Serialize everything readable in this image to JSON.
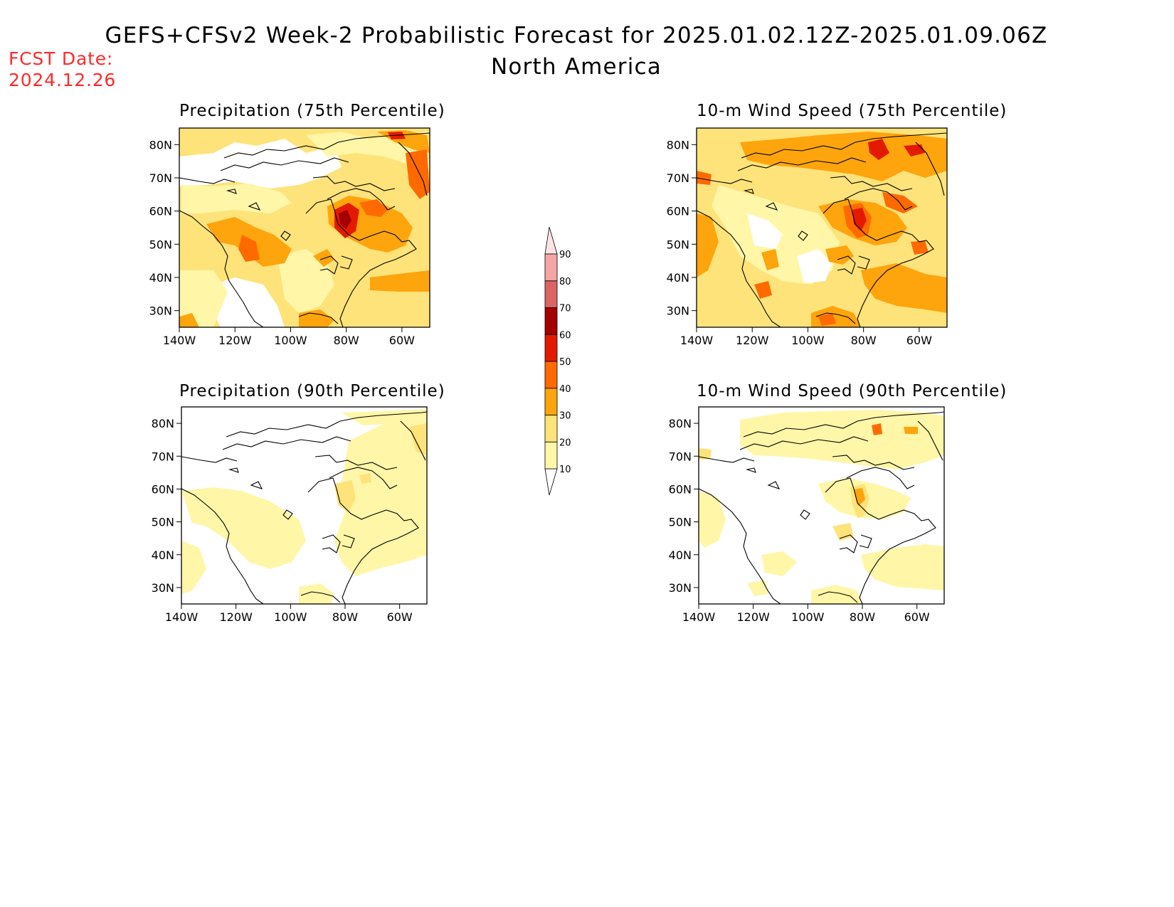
{
  "header": {
    "title": "GEFS+CFSv2 Week-2 Probabilistic Forecast for 2025.01.02.12Z-2025.01.09.06Z",
    "subtitle": "North America",
    "fcst_label": "FCST Date:",
    "fcst_date": "2024.12.26"
  },
  "axes": {
    "lat_labels": [
      "80N",
      "70N",
      "60N",
      "50N",
      "40N",
      "30N"
    ],
    "lon_labels": [
      "140W",
      "120W",
      "100W",
      "80W",
      "60W"
    ]
  },
  "panels": [
    {
      "id": "precip75",
      "title": "Precipitation (75th Percentile)"
    },
    {
      "id": "wind75",
      "title": "10-m Wind Speed (75th Percentile)"
    },
    {
      "id": "precip90",
      "title": "Precipitation (90th Percentile)"
    },
    {
      "id": "wind90",
      "title": "10-m Wind Speed (90th Percentile)"
    }
  ],
  "colorbar": {
    "levels": [
      "10",
      "20",
      "30",
      "40",
      "50",
      "60",
      "70",
      "80",
      "90"
    ],
    "colors": [
      "#fff6a8",
      "#fee37a",
      "#fea40c",
      "#fe6a00",
      "#e41a00",
      "#a50000",
      "#dc6464",
      "#f5a5a5",
      "#fde4e4"
    ]
  },
  "colors": {
    "title_red": "#ff2a2a",
    "coast": "#000000"
  }
}
